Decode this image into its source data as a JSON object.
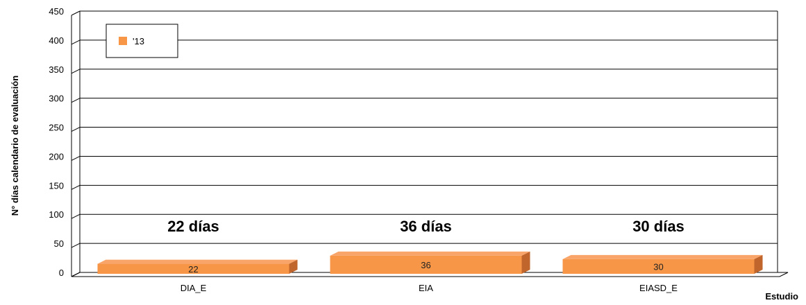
{
  "chart_data": {
    "type": "bar",
    "categories": [
      "DIA_E",
      "EIA",
      "EIASD_E"
    ],
    "series": [
      {
        "name": "'13",
        "values": [
          22,
          36,
          30
        ],
        "color": "#F79646"
      }
    ],
    "ylim": [
      0,
      450
    ],
    "yticks": [
      0,
      50,
      100,
      150,
      200,
      250,
      300,
      350,
      400,
      450
    ],
    "ylabel": "N° días calendario de evaluación",
    "xlabel": "Estudio",
    "grid": true,
    "legend_position": "top-left",
    "annotations": [
      "22 días",
      "36 días",
      "30 días"
    ]
  }
}
